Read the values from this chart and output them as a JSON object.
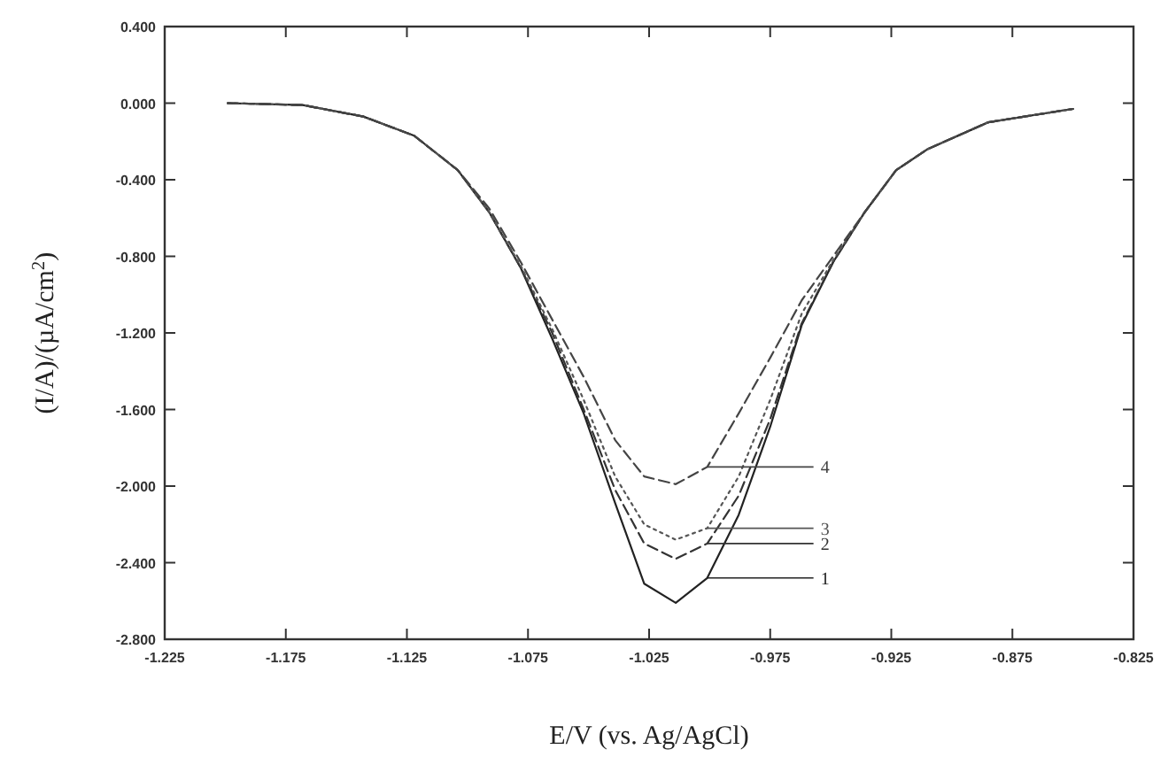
{
  "chart_data": {
    "type": "line",
    "xlabel": "E/V (vs. Ag/AgCl)",
    "ylabel": "(I/A)/(µA/cm$^{2}$)",
    "x": [
      -1.199,
      -1.168,
      -1.143,
      -1.122,
      -1.104,
      -1.091,
      -1.078,
      -1.065,
      -1.052,
      -1.039,
      -1.027,
      -1.014,
      -1.001,
      -0.988,
      -0.975,
      -0.962,
      -0.949,
      -0.936,
      -0.923,
      -0.91,
      -0.885,
      -0.85
    ],
    "series": [
      {
        "name": "1",
        "color": "#222222",
        "line_style": "solid",
        "values": [
          0,
          -0.01,
          -0.07,
          -0.17,
          -0.35,
          -0.57,
          -0.86,
          -1.23,
          -1.62,
          -2.09,
          -2.51,
          -2.61,
          -2.48,
          -2.15,
          -1.69,
          -1.16,
          -0.83,
          -0.57,
          -0.35,
          -0.24,
          -0.1,
          -0.03
        ]
      },
      {
        "name": "2",
        "color": "#333333",
        "line_style": "dashed",
        "values": [
          0,
          -0.01,
          -0.07,
          -0.17,
          -0.35,
          -0.57,
          -0.86,
          -1.2,
          -1.6,
          -2.02,
          -2.3,
          -2.38,
          -2.3,
          -2.05,
          -1.65,
          -1.15,
          -0.83,
          -0.57,
          -0.35,
          -0.24,
          -0.1,
          -0.03
        ]
      },
      {
        "name": "3",
        "color": "#555555",
        "line_style": "dotted",
        "values": [
          0,
          -0.01,
          -0.07,
          -0.17,
          -0.35,
          -0.57,
          -0.85,
          -1.18,
          -1.55,
          -1.95,
          -2.2,
          -2.28,
          -2.22,
          -1.95,
          -1.55,
          -1.1,
          -0.82,
          -0.57,
          -0.35,
          -0.24,
          -0.1,
          -0.03
        ]
      },
      {
        "name": "4",
        "color": "#444444",
        "line_style": "dashed",
        "values": [
          0,
          -0.01,
          -0.07,
          -0.17,
          -0.35,
          -0.55,
          -0.83,
          -1.13,
          -1.43,
          -1.76,
          -1.95,
          -1.99,
          -1.9,
          -1.62,
          -1.33,
          -1.03,
          -0.8,
          -0.57,
          -0.35,
          -0.24,
          -0.1,
          -0.03
        ]
      }
    ],
    "xlim": [
      -1.225,
      -0.825
    ],
    "xticks": [
      -1.225,
      -1.175,
      -1.125,
      -1.075,
      -1.025,
      -0.975,
      -0.925,
      -0.875,
      -0.825
    ],
    "ylim": [
      -2.8,
      0.4
    ],
    "yticks": [
      {
        "value": 0.4,
        "label": "0.400"
      },
      {
        "value": 0,
        "label": "0.000"
      },
      {
        "value": -0.4,
        "label": "-0.400"
      },
      {
        "value": -0.8,
        "label": "-0.800"
      },
      {
        "value": -1.2,
        "label": "-1.200"
      },
      {
        "value": -1.6,
        "label": "-1.600"
      },
      {
        "value": -2,
        "label": "-2.000"
      },
      {
        "value": -2.4,
        "label": "-2.400"
      },
      {
        "value": -2.8,
        "label": "-2.800"
      }
    ],
    "grid": false
  }
}
